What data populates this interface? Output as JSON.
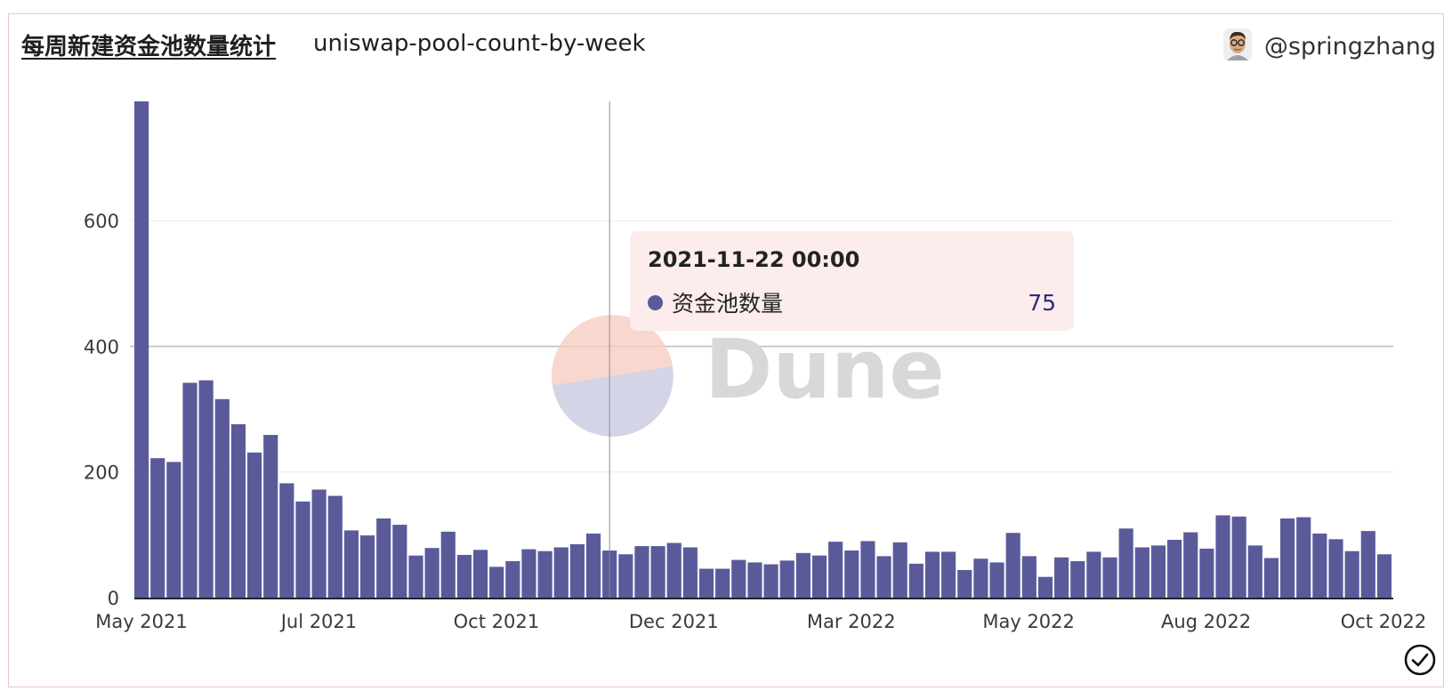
{
  "header": {
    "title": "每周新建资金池数量统计",
    "subtitle": "uniswap-pool-count-by-week",
    "author": "@springzhang"
  },
  "watermark": "Dune",
  "tooltip": {
    "date": "2021-11-22 00:00",
    "series_label": "资金池数量",
    "value": "75"
  },
  "colors": {
    "bar": "#5a5a9b",
    "accent_border": "#efc6c6",
    "tooltip_bg": "#fcecec",
    "watermark_orange": "#f5c9bd",
    "watermark_blue": "#c5c6df"
  },
  "icons": {
    "avatar": "avatar-icon",
    "check": "check-circle-icon"
  },
  "chart_data": {
    "type": "bar",
    "title": "",
    "xlabel": "",
    "ylabel": "",
    "ylim": [
      0,
      790
    ],
    "y_ticks": [
      0,
      200,
      400,
      600
    ],
    "grid": true,
    "x_tick_labels": [
      "May 2021",
      "Jul 2021",
      "Oct 2021",
      "Dec 2021",
      "Mar 2022",
      "May 2022",
      "Aug 2022",
      "Oct 2022"
    ],
    "highlight_index": 29,
    "series": [
      {
        "name": "资金池数量",
        "values": [
          790,
          222,
          216,
          342,
          346,
          316,
          276,
          231,
          259,
          182,
          153,
          172,
          162,
          107,
          99,
          126,
          116,
          67,
          79,
          105,
          68,
          76,
          49,
          58,
          77,
          74,
          80,
          85,
          102,
          75,
          69,
          82,
          82,
          87,
          80,
          46,
          46,
          60,
          56,
          53,
          59,
          71,
          67,
          89,
          75,
          90,
          66,
          88,
          54,
          73,
          73,
          44,
          62,
          56,
          103,
          66,
          33,
          64,
          58,
          73,
          64,
          110,
          80,
          83,
          92,
          104,
          78,
          131,
          129,
          83,
          63,
          126,
          128,
          102,
          93,
          74,
          106,
          69
        ]
      }
    ]
  }
}
